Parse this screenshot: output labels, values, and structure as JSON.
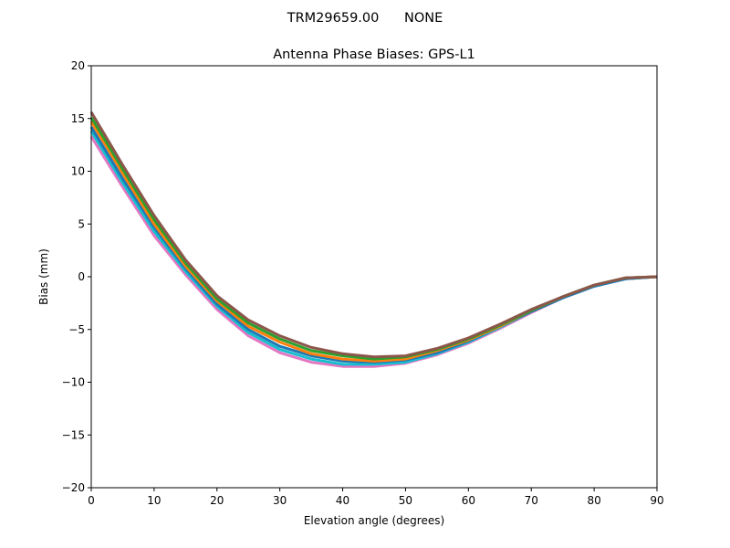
{
  "chart_data": {
    "type": "line",
    "suptitle": "TRM29659.00      NONE",
    "title": "Antenna Phase Biases: GPS-L1",
    "xlabel": "Elevation angle (degrees)",
    "ylabel": "Bias (mm)",
    "xlim": [
      0,
      90
    ],
    "ylim": [
      -20,
      20
    ],
    "xticks": [
      0,
      10,
      20,
      30,
      40,
      50,
      60,
      70,
      80,
      90
    ],
    "yticks": [
      -20,
      -15,
      -10,
      -5,
      0,
      5,
      10,
      15,
      20
    ],
    "ytick_labels": [
      "−20",
      "−15",
      "−10",
      "−5",
      "0",
      "5",
      "10",
      "15",
      "20"
    ],
    "grid": false,
    "x": [
      0,
      5,
      10,
      15,
      20,
      25,
      30,
      35,
      40,
      45,
      50,
      55,
      60,
      65,
      70,
      75,
      80,
      85,
      90
    ],
    "series": [
      {
        "name": "azimuth-1",
        "color": "#e377c2",
        "values": [
          13.3,
          8.5,
          3.9,
          0.2,
          -3.1,
          -5.6,
          -7.2,
          -8.1,
          -8.5,
          -8.5,
          -8.2,
          -7.4,
          -6.3,
          -4.9,
          -3.4,
          -2.0,
          -0.9,
          -0.2,
          0.0
        ]
      },
      {
        "name": "azimuth-2",
        "color": "#17becf",
        "values": [
          13.8,
          8.9,
          4.3,
          0.5,
          -2.8,
          -5.3,
          -6.9,
          -7.8,
          -8.3,
          -8.3,
          -8.1,
          -7.3,
          -6.2,
          -4.8,
          -3.3,
          -2.0,
          -0.9,
          -0.2,
          0.0
        ]
      },
      {
        "name": "azimuth-3",
        "color": "#1f77b4",
        "values": [
          14.2,
          9.3,
          4.7,
          0.8,
          -2.6,
          -5.0,
          -6.6,
          -7.5,
          -8.0,
          -8.1,
          -7.9,
          -7.2,
          -6.1,
          -4.7,
          -3.3,
          -2.0,
          -0.9,
          -0.2,
          0.0
        ]
      },
      {
        "name": "azimuth-4",
        "color": "#ff7f0e",
        "values": [
          14.7,
          9.8,
          5.0,
          1.0,
          -2.3,
          -4.7,
          -6.2,
          -7.3,
          -7.8,
          -8.0,
          -7.8,
          -7.0,
          -6.0,
          -4.7,
          -3.2,
          -1.9,
          -0.8,
          -0.1,
          0.0
        ]
      },
      {
        "name": "azimuth-5",
        "color": "#2ca02c",
        "values": [
          15.1,
          10.2,
          5.4,
          1.3,
          -2.1,
          -4.4,
          -5.9,
          -7.0,
          -7.5,
          -7.8,
          -7.6,
          -6.9,
          -5.9,
          -4.6,
          -3.2,
          -1.9,
          -0.8,
          -0.1,
          0.0
        ]
      },
      {
        "name": "azimuth-6",
        "color": "#8c564b",
        "values": [
          15.6,
          10.6,
          5.8,
          1.6,
          -1.8,
          -4.1,
          -5.6,
          -6.7,
          -7.3,
          -7.6,
          -7.5,
          -6.8,
          -5.8,
          -4.5,
          -3.1,
          -1.9,
          -0.8,
          -0.1,
          0.0
        ]
      }
    ]
  }
}
